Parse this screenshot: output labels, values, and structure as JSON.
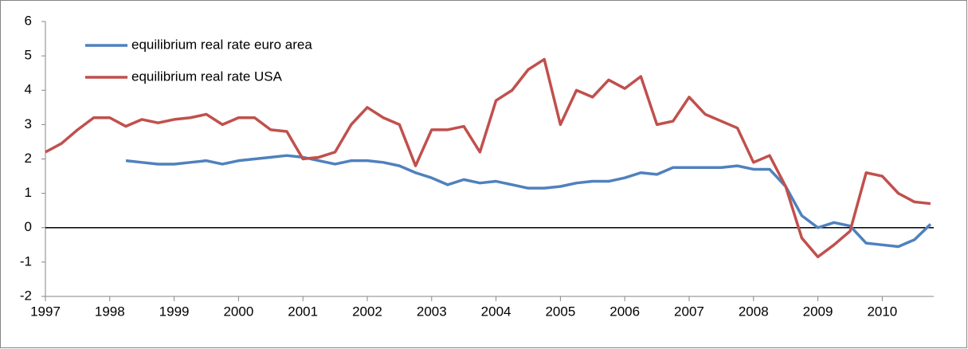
{
  "chart_data": {
    "type": "line",
    "x": [
      1997.0,
      1997.25,
      1997.5,
      1997.75,
      1998.0,
      1998.25,
      1998.5,
      1998.75,
      1999.0,
      1999.25,
      1999.5,
      1999.75,
      2000.0,
      2000.25,
      2000.5,
      2000.75,
      2001.0,
      2001.25,
      2001.5,
      2001.75,
      2002.0,
      2002.25,
      2002.5,
      2002.75,
      2003.0,
      2003.25,
      2003.5,
      2003.75,
      2004.0,
      2004.25,
      2004.5,
      2004.75,
      2005.0,
      2005.25,
      2005.5,
      2005.75,
      2006.0,
      2006.25,
      2006.5,
      2006.75,
      2007.0,
      2007.25,
      2007.5,
      2007.75,
      2008.0,
      2008.25,
      2008.5,
      2008.75,
      2009.0,
      2009.25,
      2009.5,
      2009.75,
      2010.0,
      2010.25,
      2010.5,
      2010.75
    ],
    "series": [
      {
        "name": "equilibrium real rate euro area",
        "color": "#4f81bd",
        "values": [
          null,
          null,
          null,
          null,
          null,
          1.95,
          1.9,
          1.85,
          1.85,
          1.9,
          1.95,
          1.85,
          1.95,
          2.0,
          2.05,
          2.1,
          2.05,
          1.95,
          1.85,
          1.95,
          1.95,
          1.9,
          1.8,
          1.6,
          1.45,
          1.25,
          1.4,
          1.3,
          1.35,
          1.25,
          1.15,
          1.15,
          1.2,
          1.3,
          1.35,
          1.35,
          1.45,
          1.6,
          1.55,
          1.75,
          1.75,
          1.75,
          1.75,
          1.8,
          1.7,
          1.7,
          1.2,
          0.35,
          0.0,
          0.15,
          0.05,
          -0.45,
          -0.5,
          -0.55,
          -0.35,
          0.1
        ]
      },
      {
        "name": "equilibrium real rate USA",
        "color": "#c0504d",
        "values": [
          2.2,
          2.45,
          2.85,
          3.2,
          3.2,
          2.95,
          3.15,
          3.05,
          3.15,
          3.2,
          3.3,
          3.0,
          3.2,
          3.2,
          2.85,
          2.8,
          2.0,
          2.05,
          2.2,
          3.0,
          3.5,
          3.2,
          3.0,
          1.8,
          2.85,
          2.85,
          2.95,
          2.2,
          3.7,
          4.0,
          4.6,
          4.9,
          3.0,
          4.0,
          3.8,
          4.3,
          4.05,
          4.4,
          3.0,
          3.1,
          3.8,
          3.3,
          3.1,
          2.9,
          1.9,
          2.1,
          1.2,
          -0.3,
          -0.85,
          -0.5,
          -0.1,
          1.6,
          1.5,
          1.0,
          0.75,
          0.7
        ]
      }
    ],
    "xlim": [
      1997,
      2010.8
    ],
    "xticks": [
      1997,
      1998,
      1999,
      2000,
      2001,
      2002,
      2003,
      2004,
      2005,
      2006,
      2007,
      2008,
      2009,
      2010
    ],
    "ylim": [
      -2,
      6
    ],
    "yticks": [
      -2,
      -1,
      0,
      1,
      2,
      3,
      4,
      5,
      6
    ],
    "grid": false,
    "legend": "upper-left"
  }
}
